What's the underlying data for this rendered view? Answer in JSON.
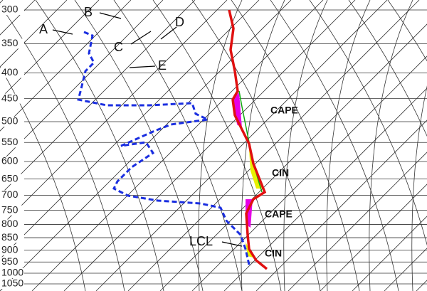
{
  "chart_data": {
    "type": "skew-t",
    "ylim": [
      300,
      1050
    ],
    "log_y": true,
    "grid": true,
    "yticks": [
      300,
      350,
      400,
      450,
      500,
      550,
      600,
      650,
      700,
      750,
      800,
      850,
      900,
      950,
      1000,
      1050
    ],
    "annotations": [
      "A",
      "B",
      "C",
      "D",
      "E",
      "LCL",
      "CAPE",
      "CIN",
      "CAPE",
      "CIN"
    ]
  }
}
